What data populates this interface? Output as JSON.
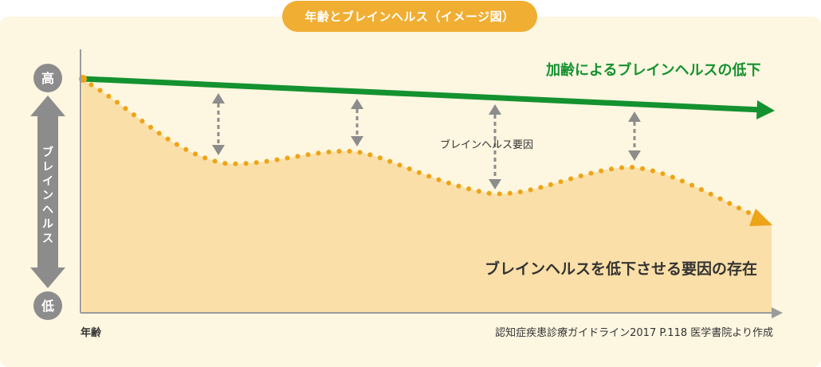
{
  "title": "年齢とブレインヘルス（イメージ図）",
  "y_axis": {
    "label_chars": [
      "ブ",
      "レ",
      "イ",
      "ン",
      "ヘ",
      "ル",
      "ス"
    ],
    "high": "高",
    "low": "低"
  },
  "x_axis": {
    "label": "年齢"
  },
  "labels": {
    "aging_decline": "加齢によるブレインヘルスの低下",
    "factor": "ブレインヘルス要因",
    "factors_presence": "ブレインヘルスを低下させる要因の存在"
  },
  "source": "認知症疾患診療ガイドライン2017 P.118 医学書院より作成",
  "colors": {
    "green": "#13922f",
    "orange": "#eea417",
    "fill": "#fadfa8",
    "panel": "#fdf6e0",
    "pill": "#f0ae32",
    "gray": "#8c8c8c",
    "dark": "#333333"
  }
}
